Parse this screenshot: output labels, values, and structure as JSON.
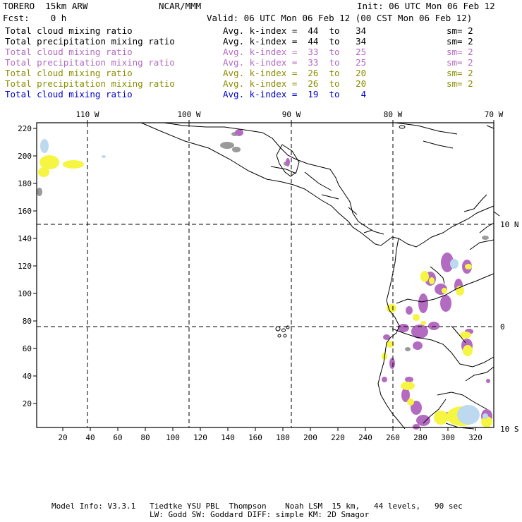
{
  "header": {
    "model": "TORERO  15km ARW",
    "center": "NCAR/MMM",
    "init": "Init: 06 UTC Mon 06 Feb 12",
    "fcst": "Fcst:    0 h",
    "valid": "Valid: 06 UTC Mon 06 Feb 12 (00 CST Mon 06 Feb 12)"
  },
  "legend": [
    {
      "field": "Total cloud mixing ratio",
      "kindex": "Avg. k-index =  44  to   34",
      "sm": "sm= 2",
      "color": "#000000"
    },
    {
      "field": "Total precipitation mixing ratio",
      "kindex": "Avg. k-index =  44  to   34",
      "sm": "sm= 2",
      "color": "#000000"
    },
    {
      "field": "Total cloud mixing ratio",
      "kindex": "Avg. k-index =  33  to   25",
      "sm": "sm= 2",
      "color": "#b36bc1"
    },
    {
      "field": "Total precipitation mixing ratio",
      "kindex": "Avg. k-index =  33  to   25",
      "sm": "sm= 2",
      "color": "#b36bc1"
    },
    {
      "field": "Total cloud mixing ratio",
      "kindex": "Avg. k-index =  26  to   20",
      "sm": "sm= 2",
      "color": "#8c8c00"
    },
    {
      "field": "Total precipitation mixing ratio",
      "kindex": "Avg. k-index =  26  to   20",
      "sm": "sm= 2",
      "color": "#8c8c00"
    },
    {
      "field": "Total cloud mixing ratio",
      "kindex": "Avg. k-index =  19  to    4",
      "sm": "",
      "color": "#0000cc"
    }
  ],
  "map": {
    "lon_labels": [
      "110 W",
      "100 W",
      "90 W",
      "80 W",
      "70 W"
    ],
    "lat_labels": [
      "10 N",
      "0",
      "10 S"
    ],
    "y_ticks": [
      "220",
      "200",
      "180",
      "160",
      "140",
      "120",
      "100",
      "80",
      "60",
      "40",
      "20"
    ],
    "x_ticks": [
      "20",
      "40",
      "60",
      "80",
      "100",
      "120",
      "140",
      "160",
      "180",
      "200",
      "220",
      "240",
      "260",
      "280",
      "300",
      "320"
    ],
    "colors": {
      "gray": "#9a9a9a",
      "purple": "#b36bc1",
      "yellow": "#f5f542",
      "blue": "#bcd9f0"
    }
  },
  "footer": {
    "line1": "Model Info: V3.3.1   Tiedtke YSU PBL  Thompson    Noah LSM  15 km,   44 levels,   90 sec",
    "line2": "LW: Godd SW: Goddard DIFF: simple KM: 2D Smagor"
  }
}
